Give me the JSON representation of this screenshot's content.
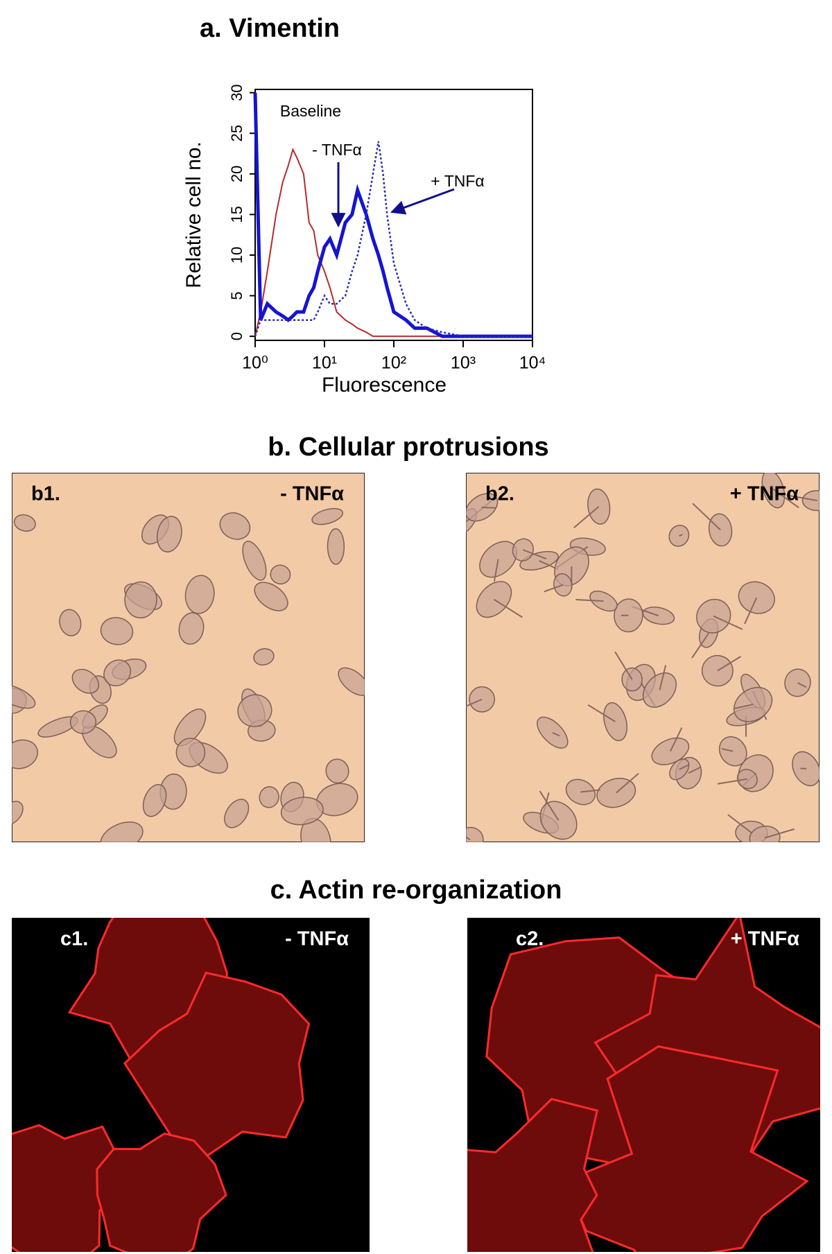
{
  "chart_data": {
    "type": "line",
    "title": "a. Vimentin",
    "x_label": "Fluorescence",
    "y_label": "Relative cell no.",
    "xscale": "log",
    "xlim": [
      1,
      10000
    ],
    "xticks": [
      {
        "value": 1,
        "label": "10⁰"
      },
      {
        "value": 10,
        "label": "10¹"
      },
      {
        "value": 100,
        "label": "10²"
      },
      {
        "value": 1000,
        "label": "10³"
      },
      {
        "value": 10000,
        "label": "10⁴"
      }
    ],
    "ylim": [
      -0.5,
      30.4
    ],
    "yticks": [
      0,
      5,
      10,
      15,
      20,
      25,
      30
    ],
    "x": [
      1,
      1.2,
      1.5,
      2,
      2.5,
      3,
      3.5,
      4,
      5,
      6,
      7,
      8,
      10,
      12,
      15,
      20,
      25,
      30,
      40,
      50,
      60,
      70,
      80,
      100,
      150,
      200,
      300,
      500,
      1000,
      10000
    ],
    "series": [
      {
        "name": "Baseline",
        "color": "#b52a2a",
        "linestyle": "solid",
        "values": [
          0,
          3,
          8,
          15,
          19,
          21,
          23,
          22,
          20,
          14,
          13,
          10,
          8,
          6,
          3,
          2,
          1.5,
          1,
          0.5,
          0,
          0,
          0,
          0,
          0,
          0,
          0,
          0,
          0,
          0,
          0
        ]
      },
      {
        "name": "- TNFα",
        "color": "#1414d2",
        "linestyle": "solid",
        "values": [
          30,
          2,
          4,
          3,
          2.5,
          2,
          2.5,
          3,
          3,
          5,
          6,
          8,
          11,
          12,
          10,
          14,
          15,
          18,
          15,
          12,
          10,
          8,
          6,
          3,
          2,
          1,
          1,
          0,
          0,
          0
        ]
      },
      {
        "name": "+ TNFα",
        "color": "#2a2ab8",
        "linestyle": "dotted",
        "values": [
          0,
          2,
          2,
          2,
          2,
          2,
          2,
          2,
          2,
          2,
          2,
          3,
          5,
          4,
          4,
          5,
          8,
          10,
          15,
          20,
          24,
          20,
          15,
          9,
          4,
          2,
          1,
          0.5,
          0,
          0
        ]
      }
    ]
  },
  "panels": [
    {
      "title": "b. Cellular protrusions",
      "images": [
        {
          "label": "b1.",
          "condition": "- TNFα"
        },
        {
          "label": "b2.",
          "condition": "+ TNFα"
        }
      ]
    },
    {
      "title": "c. Actin re-organization",
      "images": [
        {
          "label": "c1.",
          "condition": "- TNFα"
        },
        {
          "label": "c2.",
          "condition": "+ TNFα"
        }
      ]
    }
  ]
}
